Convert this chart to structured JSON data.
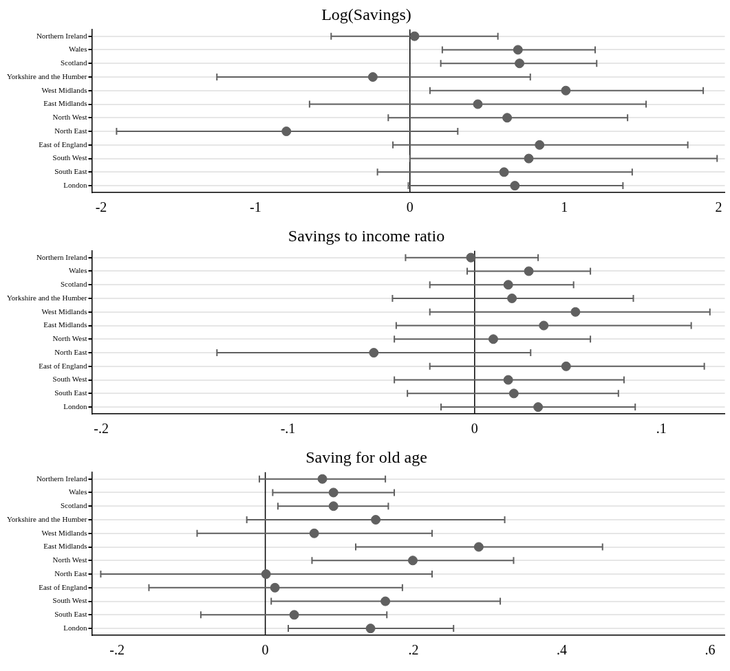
{
  "chart_data": [
    {
      "type": "scatter",
      "title": "Log(Savings)",
      "categories": [
        "Northern Ireland",
        "Wales",
        "Scotland",
        "Yorkshire and the Humber",
        "West Midlands",
        "East Midlands",
        "North West",
        "North East",
        "East of England",
        "South West",
        "South East",
        "London"
      ],
      "orientation": "horizontal",
      "marker": "circle",
      "grid": "y",
      "color": "#606060",
      "values": [
        0.03,
        0.7,
        0.71,
        -0.24,
        1.01,
        0.44,
        0.63,
        -0.8,
        0.84,
        0.77,
        0.61,
        0.68
      ],
      "errors": [
        [
          -0.51,
          0.57
        ],
        [
          0.21,
          1.2
        ],
        [
          0.2,
          1.21
        ],
        [
          -1.25,
          0.78
        ],
        [
          0.13,
          1.9
        ],
        [
          -0.65,
          1.53
        ],
        [
          -0.14,
          1.41
        ],
        [
          -1.9,
          0.31
        ],
        [
          -0.11,
          1.8
        ],
        [
          0.0,
          1.99
        ],
        [
          -0.21,
          1.44
        ],
        [
          -0.01,
          1.38
        ]
      ],
      "xlim": [
        -2.06,
        2.04
      ],
      "xticks": [
        -2,
        -1,
        0,
        1,
        2
      ],
      "ref_lines": [
        {
          "axis": "x",
          "value": 0
        }
      ]
    },
    {
      "type": "scatter",
      "title": "Savings to income ratio",
      "categories": [
        "Northern Ireland",
        "Wales",
        "Scotland",
        "Yorkshire and the Humber",
        "West Midlands",
        "East Midlands",
        "North West",
        "North East",
        "East of England",
        "South West",
        "South East",
        "London"
      ],
      "orientation": "horizontal",
      "marker": "circle",
      "grid": "y",
      "color": "#606060",
      "values": [
        -0.002,
        0.029,
        0.018,
        0.02,
        0.054,
        0.037,
        0.01,
        -0.054,
        0.049,
        0.018,
        0.021,
        0.034
      ],
      "errors": [
        [
          -0.037,
          0.034
        ],
        [
          -0.004,
          0.062
        ],
        [
          -0.024,
          0.053
        ],
        [
          -0.044,
          0.085
        ],
        [
          -0.024,
          0.126
        ],
        [
          -0.042,
          0.116
        ],
        [
          -0.043,
          0.062
        ],
        [
          -0.138,
          0.03
        ],
        [
          -0.024,
          0.123
        ],
        [
          -0.043,
          0.08
        ],
        [
          -0.036,
          0.077
        ],
        [
          -0.018,
          0.086
        ]
      ],
      "xlim": [
        -0.205,
        0.134
      ],
      "xticks": [
        {
          "value": -0.2,
          "label": "-.2"
        },
        {
          "value": -0.1,
          "label": "-.1"
        },
        0,
        {
          "value": 0.1,
          "label": ".1"
        }
      ],
      "ref_lines": [
        {
          "axis": "x",
          "value": 0
        }
      ]
    },
    {
      "type": "scatter",
      "title": "Saving for old age",
      "categories": [
        "Northern Ireland",
        "Wales",
        "Scotland",
        "Yorkshire and the Humber",
        "West Midlands",
        "East Midlands",
        "North West",
        "North East",
        "East of England",
        "South West",
        "South East",
        "London"
      ],
      "orientation": "horizontal",
      "marker": "circle",
      "grid": "y",
      "color": "#606060",
      "values": [
        0.077,
        0.092,
        0.092,
        0.149,
        0.066,
        0.288,
        0.199,
        0.001,
        0.013,
        0.162,
        0.039,
        0.142
      ],
      "errors": [
        [
          -0.008,
          0.162
        ],
        [
          0.01,
          0.174
        ],
        [
          0.017,
          0.166
        ],
        [
          -0.025,
          0.323
        ],
        [
          -0.092,
          0.225
        ],
        [
          0.122,
          0.455
        ],
        [
          0.063,
          0.335
        ],
        [
          -0.222,
          0.225
        ],
        [
          -0.157,
          0.185
        ],
        [
          0.008,
          0.317
        ],
        [
          -0.087,
          0.164
        ],
        [
          0.031,
          0.254
        ]
      ],
      "xlim": [
        -0.234,
        0.62
      ],
      "xticks": [
        {
          "value": -0.2,
          "label": "-.2"
        },
        0,
        {
          "value": 0.2,
          "label": ".2"
        },
        {
          "value": 0.4,
          "label": ".4"
        },
        {
          "value": 0.6,
          "label": ".6"
        }
      ],
      "ref_lines": [
        {
          "axis": "x",
          "value": 0
        }
      ]
    }
  ]
}
